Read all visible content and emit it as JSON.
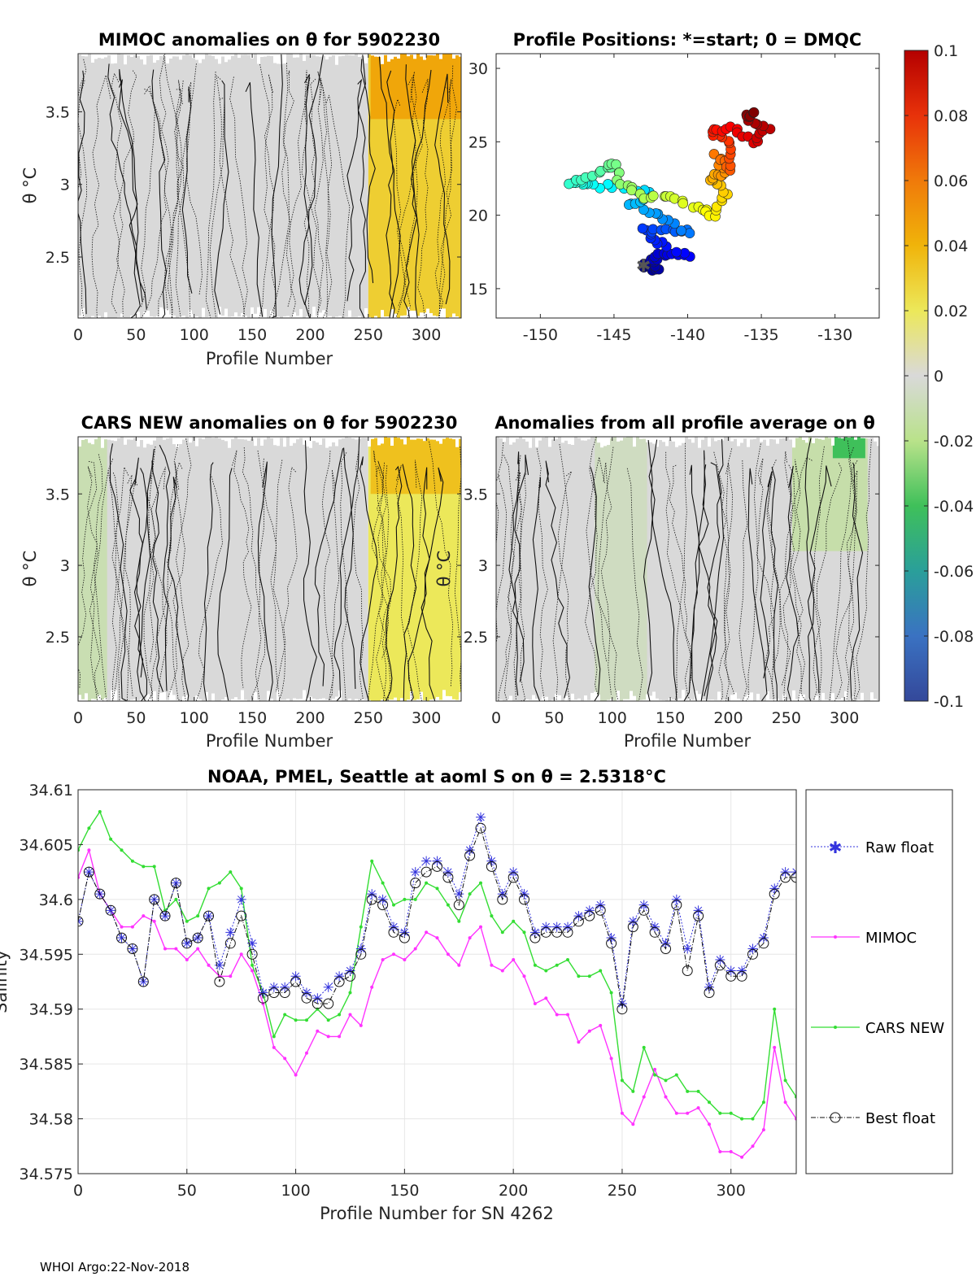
{
  "footer": "WHOI Argo:22-Nov-2018",
  "chart_data": [
    {
      "type": "heatmap",
      "title": "MIMOC anomalies on θ  for 5902230",
      "xlabel": "Profile Number",
      "ylabel": "θ °C",
      "xlim": [
        0,
        330
      ],
      "ylim": [
        2.08,
        3.9
      ],
      "xticks": [
        0,
        50,
        100,
        150,
        200,
        250,
        300
      ],
      "yticks": [
        2.5,
        3,
        3.5
      ],
      "bands": [
        {
          "x0": 0,
          "x1": 250,
          "anomaly": 0.0
        },
        {
          "x0": 250,
          "x1": 330,
          "anomaly": 0.03
        },
        {
          "x0": 252,
          "x1": 330,
          "y0": 3.45,
          "y1": 3.9,
          "anomaly": 0.045
        }
      ],
      "colorbar": {
        "min": -0.1,
        "max": 0.1
      }
    },
    {
      "type": "scatter",
      "title": "Profile Positions: *=start; 0 = DMQC",
      "xlim": [
        -153,
        -127
      ],
      "ylim": [
        13,
        31
      ],
      "xticks": [
        -150,
        -145,
        -140,
        -135,
        -130
      ],
      "yticks": [
        15,
        20,
        25,
        30
      ],
      "start": {
        "lon": -143,
        "lat": 16.6
      },
      "track": [
        {
          "lon": -143.0,
          "lat": 16.6,
          "n": 0
        },
        {
          "lon": -142.0,
          "lat": 16.3,
          "n": 10
        },
        {
          "lon": -142.5,
          "lat": 17.0,
          "n": 20
        },
        {
          "lon": -141.5,
          "lat": 17.5,
          "n": 30
        },
        {
          "lon": -140.0,
          "lat": 17.3,
          "n": 40
        },
        {
          "lon": -142.0,
          "lat": 18.2,
          "n": 50
        },
        {
          "lon": -143.0,
          "lat": 19.0,
          "n": 60
        },
        {
          "lon": -141.0,
          "lat": 19.0,
          "n": 70
        },
        {
          "lon": -140.0,
          "lat": 18.8,
          "n": 80
        },
        {
          "lon": -142.0,
          "lat": 20.0,
          "n": 90
        },
        {
          "lon": -144.0,
          "lat": 20.8,
          "n": 100
        },
        {
          "lon": -142.5,
          "lat": 21.5,
          "n": 110
        },
        {
          "lon": -145.0,
          "lat": 22.0,
          "n": 120
        },
        {
          "lon": -147.0,
          "lat": 22.0,
          "n": 130
        },
        {
          "lon": -148.0,
          "lat": 22.2,
          "n": 140
        },
        {
          "lon": -146.0,
          "lat": 22.8,
          "n": 150
        },
        {
          "lon": -145.0,
          "lat": 23.6,
          "n": 160
        },
        {
          "lon": -144.5,
          "lat": 22.2,
          "n": 170
        },
        {
          "lon": -143.0,
          "lat": 21.2,
          "n": 180
        },
        {
          "lon": -141.0,
          "lat": 21.2,
          "n": 190
        },
        {
          "lon": -139.5,
          "lat": 20.5,
          "n": 200
        },
        {
          "lon": -138.0,
          "lat": 20.0,
          "n": 210
        },
        {
          "lon": -137.5,
          "lat": 21.5,
          "n": 220
        },
        {
          "lon": -138.5,
          "lat": 22.5,
          "n": 230
        },
        {
          "lon": -137.5,
          "lat": 22.8,
          "n": 240
        },
        {
          "lon": -138.0,
          "lat": 24.0,
          "n": 250
        },
        {
          "lon": -137.0,
          "lat": 23.2,
          "n": 260
        },
        {
          "lon": -137.0,
          "lat": 24.8,
          "n": 270
        },
        {
          "lon": -138.5,
          "lat": 25.7,
          "n": 280
        },
        {
          "lon": -137.0,
          "lat": 26.0,
          "n": 290
        },
        {
          "lon": -135.5,
          "lat": 25.0,
          "n": 300
        },
        {
          "lon": -134.5,
          "lat": 26.0,
          "n": 310
        },
        {
          "lon": -136.0,
          "lat": 26.7,
          "n": 320
        },
        {
          "lon": -135.5,
          "lat": 27.0,
          "n": 330
        }
      ]
    },
    {
      "type": "heatmap",
      "title": "CARS NEW anomalies on θ for 5902230",
      "xlabel": "Profile Number",
      "ylabel": "θ °C",
      "xlim": [
        0,
        330
      ],
      "ylim": [
        2.05,
        3.9
      ],
      "xticks": [
        0,
        50,
        100,
        150,
        200,
        250,
        300
      ],
      "yticks": [
        2.5,
        3,
        3.5
      ],
      "bands": [
        {
          "x0": 0,
          "x1": 250,
          "anomaly": 0.0
        },
        {
          "x0": 0,
          "x1": 25,
          "anomaly": -0.01
        },
        {
          "x0": 250,
          "x1": 330,
          "anomaly": 0.02
        },
        {
          "x0": 252,
          "x1": 330,
          "y0": 3.5,
          "y1": 3.9,
          "anomaly": 0.035
        }
      ]
    },
    {
      "type": "heatmap",
      "title": "Anomalies from all profile average on θ",
      "xlabel": "Profile Number",
      "ylabel": "θ °C",
      "xlim": [
        0,
        330
      ],
      "ylim": [
        2.05,
        3.9
      ],
      "xticks": [
        0,
        50,
        100,
        150,
        200,
        250,
        300
      ],
      "yticks": [
        2.5,
        3,
        3.5
      ],
      "bands": [
        {
          "x0": 0,
          "x1": 330,
          "anomaly": 0.0
        },
        {
          "x0": 85,
          "x1": 130,
          "anomaly": -0.006
        },
        {
          "x0": 255,
          "x1": 320,
          "y0": 3.1,
          "y1": 3.9,
          "anomaly": -0.012
        },
        {
          "x0": 290,
          "x1": 318,
          "y0": 3.75,
          "y1": 3.9,
          "anomaly": -0.04
        }
      ]
    },
    {
      "type": "colorbar",
      "min": -0.1,
      "max": 0.1,
      "ticks": [
        "0.1",
        "0.08",
        "0.06",
        "0.04",
        "0.02",
        "0",
        "-0.02",
        "-0.04",
        "-0.06",
        "-0.08",
        "-0.1"
      ]
    },
    {
      "type": "line",
      "title": "NOAA, PMEL, Seattle at aoml S on θ = 2.5318°C",
      "xlabel": "Profile Number for SN 4262",
      "ylabel": "Salinity",
      "xlim": [
        0,
        330
      ],
      "ylim": [
        34.575,
        34.61
      ],
      "xticks": [
        0,
        50,
        100,
        150,
        200,
        250,
        300
      ],
      "yticks": [
        "34.575",
        "34.58",
        "34.585",
        "34.59",
        "34.595",
        "34.6",
        "34.605",
        "34.61"
      ],
      "legend": [
        "Raw float",
        "MIMOC",
        "CARS NEW",
        "Best float"
      ],
      "series": [
        {
          "name": "Raw float",
          "x": [
            0,
            5,
            10,
            15,
            20,
            25,
            30,
            35,
            40,
            45,
            50,
            55,
            60,
            65,
            70,
            75,
            80,
            85,
            90,
            95,
            100,
            105,
            110,
            115,
            120,
            125,
            130,
            135,
            140,
            145,
            150,
            155,
            160,
            165,
            170,
            175,
            180,
            185,
            190,
            195,
            200,
            205,
            210,
            215,
            220,
            225,
            230,
            235,
            240,
            245,
            250,
            255,
            260,
            265,
            270,
            275,
            280,
            285,
            290,
            295,
            300,
            305,
            310,
            315,
            320,
            325,
            330
          ],
          "y": [
            34.598,
            34.6025,
            34.6005,
            34.599,
            34.5965,
            34.5955,
            34.5925,
            34.6,
            34.5985,
            34.6015,
            34.596,
            34.5965,
            34.5985,
            34.594,
            34.597,
            34.6,
            34.596,
            34.5915,
            34.592,
            34.592,
            34.593,
            34.5915,
            34.591,
            34.592,
            34.593,
            34.5935,
            34.5955,
            34.6005,
            34.6,
            34.5975,
            34.597,
            34.6025,
            34.6035,
            34.6035,
            34.6025,
            34.6005,
            34.6045,
            34.6075,
            34.6035,
            34.6005,
            34.6025,
            34.6005,
            34.597,
            34.5975,
            34.5975,
            34.5975,
            34.5985,
            34.599,
            34.5995,
            34.5965,
            34.5905,
            34.598,
            34.5995,
            34.5975,
            34.596,
            34.6,
            34.5955,
            34.599,
            34.592,
            34.5945,
            34.5935,
            34.5935,
            34.5955,
            34.5965,
            34.601,
            34.6025,
            34.6025
          ]
        },
        {
          "name": "MIMOC",
          "x": [
            0,
            5,
            10,
            15,
            20,
            25,
            30,
            35,
            40,
            45,
            50,
            55,
            60,
            65,
            70,
            75,
            80,
            85,
            90,
            95,
            100,
            105,
            110,
            115,
            120,
            125,
            130,
            135,
            140,
            145,
            150,
            155,
            160,
            165,
            170,
            175,
            180,
            185,
            190,
            195,
            200,
            205,
            210,
            215,
            220,
            225,
            230,
            235,
            240,
            245,
            250,
            255,
            260,
            265,
            270,
            275,
            280,
            285,
            290,
            295,
            300,
            305,
            310,
            315,
            320,
            325,
            330
          ],
          "y": [
            34.602,
            34.6045,
            34.6005,
            34.599,
            34.5975,
            34.5975,
            34.5985,
            34.598,
            34.5955,
            34.5955,
            34.5945,
            34.5955,
            34.594,
            34.593,
            34.593,
            34.595,
            34.5935,
            34.5905,
            34.5865,
            34.5855,
            34.584,
            34.586,
            34.588,
            34.5875,
            34.5875,
            34.5895,
            34.5885,
            34.592,
            34.5945,
            34.595,
            34.5945,
            34.5955,
            34.597,
            34.5965,
            34.595,
            34.594,
            34.5965,
            34.5975,
            34.594,
            34.5935,
            34.5945,
            34.593,
            34.5905,
            34.591,
            34.5895,
            34.5895,
            34.587,
            34.588,
            34.5885,
            34.5855,
            34.5805,
            34.5795,
            34.582,
            34.5845,
            34.582,
            34.5805,
            34.5805,
            34.581,
            34.5795,
            34.577,
            34.577,
            34.5765,
            34.5775,
            34.579,
            34.5865,
            34.5815,
            34.58
          ]
        },
        {
          "name": "CARS NEW",
          "x": [
            0,
            5,
            10,
            15,
            20,
            25,
            30,
            35,
            40,
            45,
            50,
            55,
            60,
            65,
            70,
            75,
            80,
            85,
            90,
            95,
            100,
            105,
            110,
            115,
            120,
            125,
            130,
            135,
            140,
            145,
            150,
            155,
            160,
            165,
            170,
            175,
            180,
            185,
            190,
            195,
            200,
            205,
            210,
            215,
            220,
            225,
            230,
            235,
            240,
            245,
            250,
            255,
            260,
            265,
            270,
            275,
            280,
            285,
            290,
            295,
            300,
            305,
            310,
            315,
            320,
            325,
            330
          ],
          "y": [
            34.6045,
            34.6065,
            34.608,
            34.6055,
            34.6045,
            34.6035,
            34.603,
            34.603,
            34.599,
            34.6,
            34.598,
            34.5985,
            34.601,
            34.6015,
            34.6025,
            34.601,
            34.594,
            34.5915,
            34.5875,
            34.5895,
            34.589,
            34.589,
            34.59,
            34.589,
            34.5895,
            34.5915,
            34.5975,
            34.6035,
            34.6015,
            34.5995,
            34.6,
            34.6,
            34.6015,
            34.601,
            34.5995,
            34.598,
            34.6005,
            34.6015,
            34.5985,
            34.597,
            34.598,
            34.597,
            34.594,
            34.5935,
            34.594,
            34.5945,
            34.593,
            34.593,
            34.5935,
            34.5915,
            34.5835,
            34.5825,
            34.5865,
            34.584,
            34.5835,
            34.584,
            34.5825,
            34.5825,
            34.5815,
            34.5805,
            34.5805,
            34.58,
            34.58,
            34.5815,
            34.59,
            34.5835,
            34.582
          ]
        },
        {
          "name": "Best float",
          "x": [
            0,
            5,
            10,
            15,
            20,
            25,
            30,
            35,
            40,
            45,
            50,
            55,
            60,
            65,
            70,
            75,
            80,
            85,
            90,
            95,
            100,
            105,
            110,
            115,
            120,
            125,
            130,
            135,
            140,
            145,
            150,
            155,
            160,
            165,
            170,
            175,
            180,
            185,
            190,
            195,
            200,
            205,
            210,
            215,
            220,
            225,
            230,
            235,
            240,
            245,
            250,
            255,
            260,
            265,
            270,
            275,
            280,
            285,
            290,
            295,
            300,
            305,
            310,
            315,
            320,
            325,
            330
          ],
          "y": [
            34.598,
            34.6025,
            34.6005,
            34.599,
            34.5965,
            34.5955,
            34.5925,
            34.6,
            34.5985,
            34.6015,
            34.596,
            34.5965,
            34.5985,
            34.5925,
            34.596,
            34.5985,
            34.595,
            34.591,
            34.5915,
            34.5915,
            34.5925,
            34.591,
            34.5905,
            34.5905,
            34.5925,
            34.593,
            34.595,
            34.6,
            34.5995,
            34.597,
            34.5965,
            34.6015,
            34.6025,
            34.603,
            34.602,
            34.5995,
            34.604,
            34.6065,
            34.603,
            34.6,
            34.602,
            34.6,
            34.5965,
            34.597,
            34.597,
            34.597,
            34.598,
            34.5985,
            34.599,
            34.596,
            34.59,
            34.5975,
            34.599,
            34.597,
            34.5955,
            34.5995,
            34.5935,
            34.5985,
            34.5915,
            34.594,
            34.593,
            34.593,
            34.595,
            34.596,
            34.6005,
            34.602,
            34.602
          ]
        }
      ]
    }
  ]
}
